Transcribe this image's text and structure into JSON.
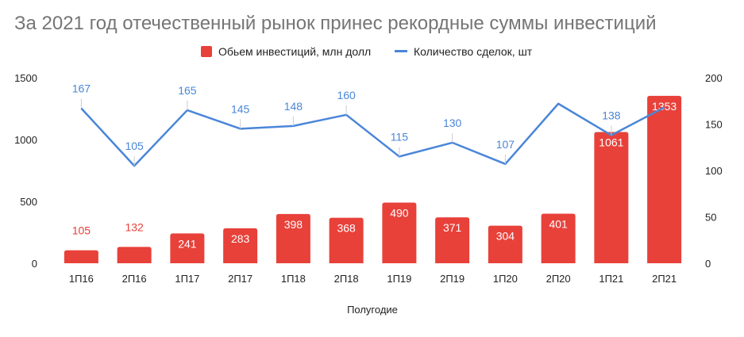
{
  "chart_data": {
    "type": "bar",
    "title": "За 2021 год отечественный рынок принес рекордные суммы инвестиций",
    "xlabel": "Полугодие",
    "categories": [
      "1П16",
      "2П16",
      "1П17",
      "2П17",
      "1П18",
      "2П18",
      "1П19",
      "2П19",
      "1П20",
      "2П20",
      "1П21",
      "2П21"
    ],
    "series": [
      {
        "name": "Обьем инвестиций, млн долл",
        "type": "bar",
        "axis": "left",
        "color": "#e8413a",
        "values": [
          105,
          132,
          241,
          283,
          398,
          368,
          490,
          371,
          304,
          401,
          1061,
          1353
        ],
        "labels": [
          "105",
          "132",
          "241",
          "283",
          "398",
          "368",
          "490",
          "371",
          "304",
          "401",
          "1061",
          "1353"
        ]
      },
      {
        "name": "Количество сделок, шт",
        "type": "line",
        "axis": "right",
        "color": "#4a86d8",
        "values": [
          167,
          105,
          165,
          145,
          148,
          160,
          115,
          130,
          107,
          172,
          138,
          168
        ],
        "labels": [
          "167",
          "105",
          "165",
          "145",
          "148",
          "160",
          "115",
          "130",
          "107",
          "",
          "138",
          ""
        ]
      }
    ],
    "y_left": {
      "range": [
        0,
        1500
      ],
      "ticks": [
        "0",
        "500",
        "1000",
        "1500"
      ]
    },
    "y_right": {
      "range": [
        0,
        200
      ],
      "ticks": [
        "0",
        "50",
        "100",
        "150",
        "200"
      ]
    },
    "grid": false,
    "legend": "top"
  }
}
